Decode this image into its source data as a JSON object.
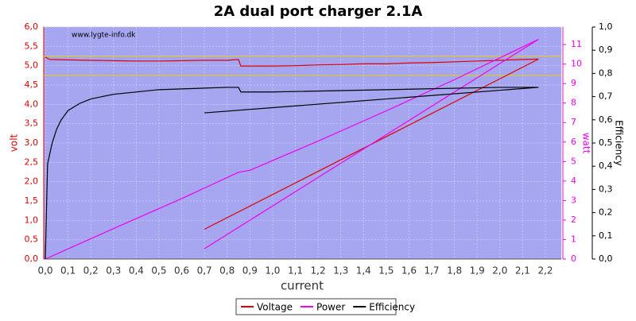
{
  "chart_data": {
    "type": "line",
    "title": "2A dual port charger 2.1A",
    "watermark": "www.lygte-info.dk",
    "x_label": "current",
    "y_label": "volt",
    "y2_label": "watt",
    "y3_label": "Efficiency",
    "xlim": [
      0,
      2.27
    ],
    "ylim": [
      0,
      6
    ],
    "y2lim": [
      0,
      11.9
    ],
    "y3lim": [
      0,
      1
    ],
    "xticks": [
      {
        "value": 0,
        "label": "0,0"
      },
      {
        "value": 0.1,
        "label": "0,1"
      },
      {
        "value": 0.2,
        "label": "0,2"
      },
      {
        "value": 0.3,
        "label": "0,3"
      },
      {
        "value": 0.4,
        "label": "0,4"
      },
      {
        "value": 0.5,
        "label": "0,5"
      },
      {
        "value": 0.6,
        "label": "0,6"
      },
      {
        "value": 0.7,
        "label": "0,7"
      },
      {
        "value": 0.8,
        "label": "0,8"
      },
      {
        "value": 0.9,
        "label": "0,9"
      },
      {
        "value": 1,
        "label": "1,0"
      },
      {
        "value": 1.1,
        "label": "1,1"
      },
      {
        "value": 1.2,
        "label": "1,2"
      },
      {
        "value": 1.3,
        "label": "1,3"
      },
      {
        "value": 1.4,
        "label": "1,4"
      },
      {
        "value": 1.5,
        "label": "1,5"
      },
      {
        "value": 1.6,
        "label": "1,6"
      },
      {
        "value": 1.7,
        "label": "1,7"
      },
      {
        "value": 1.8,
        "label": "1,8"
      },
      {
        "value": 1.9,
        "label": "1,9"
      },
      {
        "value": 2,
        "label": "2,0"
      },
      {
        "value": 2.1,
        "label": "2,1"
      },
      {
        "value": 2.2,
        "label": "2,2"
      }
    ],
    "yticks": [
      {
        "value": 0,
        "label": "0,0"
      },
      {
        "value": 0.5,
        "label": "0,5"
      },
      {
        "value": 1,
        "label": "1,0"
      },
      {
        "value": 1.5,
        "label": "1,5"
      },
      {
        "value": 2,
        "label": "2,0"
      },
      {
        "value": 2.5,
        "label": "2,5"
      },
      {
        "value": 3,
        "label": "3,0"
      },
      {
        "value": 3.5,
        "label": "3,5"
      },
      {
        "value": 4,
        "label": "4,0"
      },
      {
        "value": 4.5,
        "label": "4,5"
      },
      {
        "value": 5,
        "label": "5,0"
      },
      {
        "value": 5.5,
        "label": "5,5"
      },
      {
        "value": 6,
        "label": "6,0"
      }
    ],
    "y2ticks": [
      0,
      1,
      2,
      3,
      4,
      5,
      6,
      7,
      8,
      9,
      10,
      11
    ],
    "y3ticks": [
      {
        "value": 0,
        "label": "0,0"
      },
      {
        "value": 0.1,
        "label": "0,1"
      },
      {
        "value": 0.2,
        "label": "0,2"
      },
      {
        "value": 0.3,
        "label": "0,3"
      },
      {
        "value": 0.4,
        "label": "0,4"
      },
      {
        "value": 0.5,
        "label": "0,5"
      },
      {
        "value": 0.6,
        "label": "0,6"
      },
      {
        "value": 0.7,
        "label": "0,7"
      },
      {
        "value": 0.8,
        "label": "0,8"
      },
      {
        "value": 0.9,
        "label": "0,9"
      },
      {
        "value": 1,
        "label": "1,0"
      }
    ],
    "grid": true,
    "reference_lines": [
      5.25,
      4.75
    ],
    "reference_color": "#e8d000",
    "legend": "bottom",
    "series": [
      {
        "name": "Voltage",
        "color": "#e00000",
        "axis": "y",
        "x": [
          0,
          0.02,
          0.1,
          0.2,
          0.3,
          0.4,
          0.5,
          0.6,
          0.7,
          0.8,
          0.85,
          0.86,
          0.9,
          1.0,
          1.1,
          1.2,
          1.3,
          1.4,
          1.5,
          1.6,
          1.7,
          1.8,
          1.9,
          2.0,
          2.1,
          2.17,
          0.7
        ],
        "values": [
          5.22,
          5.16,
          5.15,
          5.14,
          5.13,
          5.12,
          5.12,
          5.13,
          5.14,
          5.14,
          5.16,
          4.99,
          4.99,
          4.99,
          5.0,
          5.02,
          5.03,
          5.05,
          5.05,
          5.07,
          5.08,
          5.1,
          5.12,
          5.14,
          5.16,
          5.17,
          0.77
        ]
      },
      {
        "name": "Power",
        "color": "#f000f0",
        "axis": "y2",
        "x": [
          0,
          0.3,
          0.6,
          0.85,
          0.9,
          1.2,
          1.5,
          1.8,
          2.17,
          0.7,
          2.17
        ],
        "values": [
          0,
          1.56,
          3.1,
          4.45,
          4.55,
          6.05,
          7.6,
          9.2,
          11.27,
          0.53,
          11.27
        ]
      },
      {
        "name": "Efficiency",
        "color": "#000000",
        "axis": "y3",
        "x": [
          0,
          0.01,
          0.03,
          0.05,
          0.07,
          0.1,
          0.15,
          0.2,
          0.3,
          0.5,
          0.8,
          0.85,
          0.86,
          1.0,
          1.5,
          2.0,
          2.17,
          0.7
        ],
        "values": [
          0,
          0.41,
          0.5,
          0.56,
          0.6,
          0.64,
          0.67,
          0.69,
          0.71,
          0.73,
          0.74,
          0.74,
          0.72,
          0.72,
          0.73,
          0.74,
          0.74,
          0.63
        ]
      }
    ]
  }
}
